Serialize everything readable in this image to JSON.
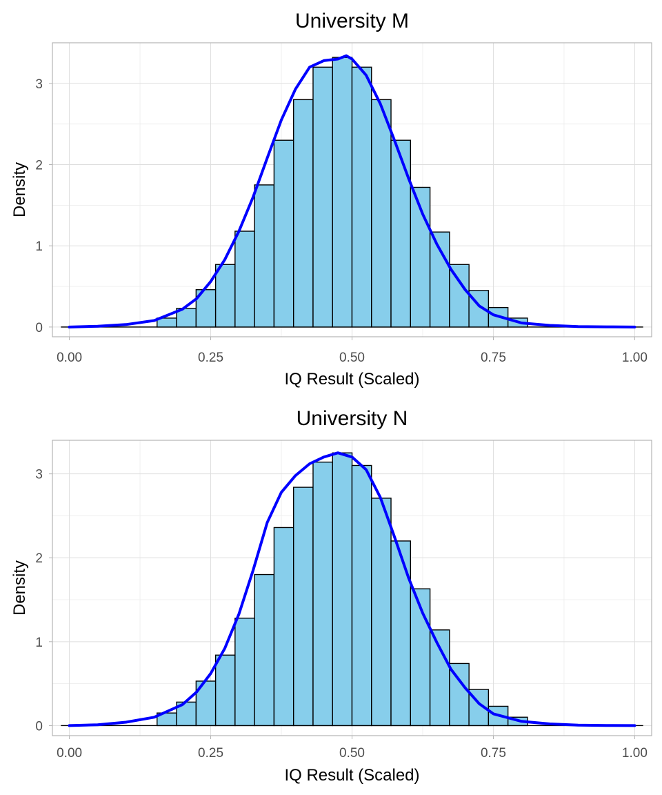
{
  "chart_data": [
    {
      "type": "bar",
      "title": "University M",
      "xlabel": "IQ Result (Scaled)",
      "ylabel": "Density",
      "xlim": [
        -0.03,
        1.03
      ],
      "ylim": [
        -0.12,
        3.5
      ],
      "x_ticks": [
        0.0,
        0.25,
        0.5,
        0.75,
        1.0
      ],
      "x_tick_labels": [
        "0.00",
        "0.25",
        "0.50",
        "0.75",
        "1.00"
      ],
      "y_ticks": [
        0,
        1,
        2,
        3
      ],
      "y_tick_labels": [
        "0",
        "1",
        "2",
        "3"
      ],
      "grid": true,
      "histogram": {
        "binwidth": 0.0345,
        "bin_centers": [
          0.1724,
          0.2069,
          0.2414,
          0.2759,
          0.3103,
          0.3448,
          0.3793,
          0.4138,
          0.4483,
          0.4828,
          0.5172,
          0.5517,
          0.5862,
          0.6207,
          0.6552,
          0.6897,
          0.7241,
          0.7586,
          0.7931
        ],
        "values": [
          0.11,
          0.23,
          0.46,
          0.77,
          1.18,
          1.75,
          2.3,
          2.8,
          3.2,
          3.32,
          3.2,
          2.8,
          2.3,
          1.72,
          1.17,
          0.77,
          0.45,
          0.24,
          0.11
        ]
      },
      "density_line": {
        "x": [
          0.0,
          0.05,
          0.1,
          0.15,
          0.2,
          0.225,
          0.25,
          0.275,
          0.3,
          0.325,
          0.35,
          0.375,
          0.4,
          0.425,
          0.45,
          0.475,
          0.49,
          0.5,
          0.525,
          0.55,
          0.575,
          0.6,
          0.625,
          0.65,
          0.675,
          0.7,
          0.725,
          0.75,
          0.8,
          0.85,
          0.9,
          0.95,
          1.0
        ],
        "y": [
          0.0,
          0.01,
          0.03,
          0.08,
          0.22,
          0.35,
          0.56,
          0.83,
          1.18,
          1.6,
          2.08,
          2.55,
          2.93,
          3.2,
          3.28,
          3.3,
          3.34,
          3.3,
          3.1,
          2.75,
          2.3,
          1.83,
          1.39,
          1.02,
          0.71,
          0.46,
          0.26,
          0.15,
          0.05,
          0.02,
          0.005,
          0.002,
          0.0
        ]
      }
    },
    {
      "type": "bar",
      "title": "University N",
      "xlabel": "IQ Result (Scaled)",
      "ylabel": "Density",
      "xlim": [
        -0.03,
        1.03
      ],
      "ylim": [
        -0.12,
        3.4
      ],
      "x_ticks": [
        0.0,
        0.25,
        0.5,
        0.75,
        1.0
      ],
      "x_tick_labels": [
        "0.00",
        "0.25",
        "0.50",
        "0.75",
        "1.00"
      ],
      "y_ticks": [
        0,
        1,
        2,
        3
      ],
      "y_tick_labels": [
        "0",
        "1",
        "2",
        "3"
      ],
      "grid": true,
      "histogram": {
        "binwidth": 0.0345,
        "bin_centers": [
          0.1724,
          0.2069,
          0.2414,
          0.2759,
          0.3103,
          0.3448,
          0.3793,
          0.4138,
          0.4483,
          0.4828,
          0.5172,
          0.5517,
          0.5862,
          0.6207,
          0.6552,
          0.6897,
          0.7241,
          0.7586,
          0.7931
        ],
        "values": [
          0.15,
          0.28,
          0.53,
          0.84,
          1.28,
          1.8,
          2.36,
          2.84,
          3.14,
          3.25,
          3.1,
          2.71,
          2.2,
          1.63,
          1.14,
          0.74,
          0.43,
          0.23,
          0.1
        ]
      },
      "density_line": {
        "x": [
          0.0,
          0.05,
          0.1,
          0.15,
          0.2,
          0.225,
          0.25,
          0.275,
          0.3,
          0.325,
          0.35,
          0.375,
          0.4,
          0.425,
          0.45,
          0.475,
          0.5,
          0.525,
          0.55,
          0.575,
          0.6,
          0.625,
          0.65,
          0.675,
          0.7,
          0.725,
          0.75,
          0.8,
          0.85,
          0.9,
          0.95,
          1.0
        ],
        "y": [
          0.0,
          0.01,
          0.04,
          0.1,
          0.25,
          0.4,
          0.62,
          0.92,
          1.33,
          1.85,
          2.42,
          2.78,
          2.98,
          3.12,
          3.2,
          3.25,
          3.2,
          3.05,
          2.72,
          2.25,
          1.76,
          1.34,
          0.99,
          0.67,
          0.45,
          0.26,
          0.14,
          0.05,
          0.02,
          0.005,
          0.002,
          0.0
        ]
      }
    }
  ],
  "colors": {
    "bar_fill": "#87ceeb",
    "bar_stroke": "#000000",
    "density_line": "#0000ff"
  }
}
